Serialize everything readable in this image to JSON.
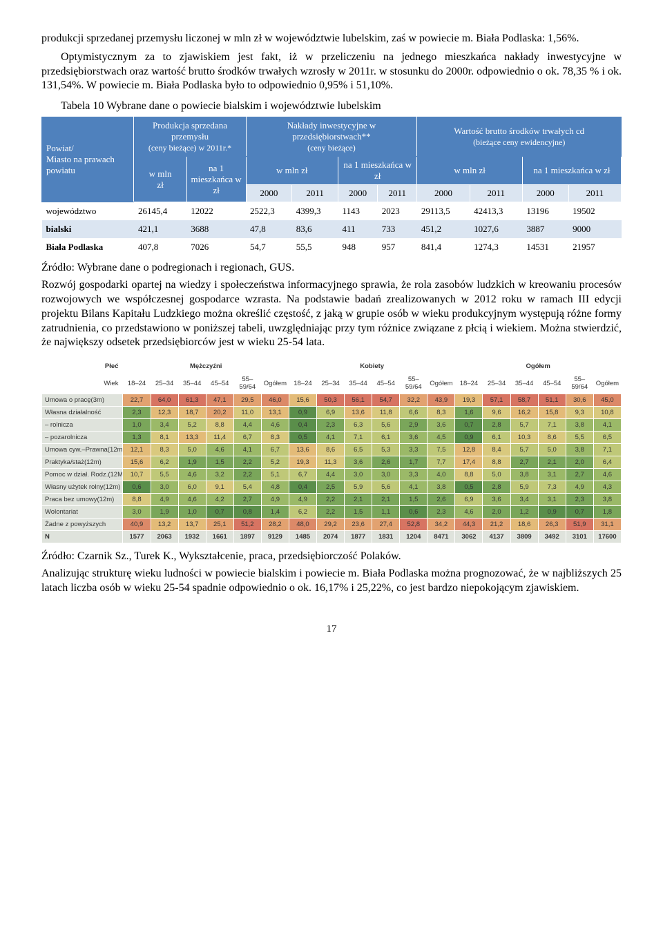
{
  "intro": {
    "p1": "produkcji sprzedanej przemysłu liczonej w mln zł w województwie lubelskim, zaś w powiecie m. Biała Podlaska: 1,56%.",
    "p2": "Optymistycznym za to zjawiskiem jest fakt, iż w przeliczeniu na jednego mieszkańca nakłady inwestycyjne w przedsiębiorstwach oraz wartość brutto środków trwałych wzrosły w 2011r. w stosunku do 2000r. odpowiednio o ok. 78,35 % i ok. 131,54%. W powiecie m. Biała Podlaska było to odpowiednio 0,95% i 51,10%.",
    "caption": "Tabela 10 Wybrane dane o powiecie bialskim i województwie lubelskim"
  },
  "t1": {
    "head": {
      "c0": "Powiat/\nMiasto na prawach powiatu",
      "g1_top": "Produkcja sprzedana przemysłu",
      "g1_sub": "(ceny bieżące) w 2011r.*",
      "g2_top": "Nakłady inwestycyjne w przedsiębiorstwach**",
      "g2_sub": "(ceny bieżące)",
      "g3_top": "Wartość brutto środków trwałych cd",
      "g3_sub": "(bieżące ceny ewidencyjne)",
      "wmln": "w mln zł",
      "na1a": "na 1 mieszkańca w zł",
      "na1b": "na 1 mieszkańca w zł",
      "na1c": "na 1 mieszkańca w zł",
      "y2000": "2000",
      "y2011": "2011"
    },
    "rows": [
      {
        "label": "województwo",
        "v": [
          "26145,4",
          "12022",
          "2522,3",
          "4399,3",
          "1143",
          "2023",
          "29113,5",
          "42413,3",
          "13196",
          "19502"
        ]
      },
      {
        "label": "bialski",
        "v": [
          "421,1",
          "3688",
          "47,8",
          "83,6",
          "411",
          "733",
          "451,2",
          "1027,6",
          "3887",
          "9000"
        ]
      },
      {
        "label": "Biała Podlaska",
        "v": [
          "407,8",
          "7026",
          "54,7",
          "55,5",
          "948",
          "957",
          "841,4",
          "1274,3",
          "14531",
          "21957"
        ]
      }
    ]
  },
  "mid": {
    "source1": "Źródło: Wybrane dane o podregionach i regionach, GUS.",
    "p3": "Rozwój gospodarki opartej na wiedzy i społeczeństwa informacyjnego sprawia, że rola zasobów ludzkich w kreowaniu procesów rozwojowych we współczesnej gospodarce wzrasta. Na podstawie badań zrealizowanych w 2012 roku w ramach III edycji projektu Bilans Kapitału Ludzkiego można określić częstość, z jaką w grupie osób w wieku produkcyjnym występują różne formy zatrudnienia, co przedstawiono w poniższej tabeli, uwzględniając przy tym różnice związane z płcią i wiekiem. Można stwierdzić, że największy odsetek przedsiębiorców jest w wieku 25-54 lata."
  },
  "t2": {
    "plec_label": "Płeć",
    "wiek_label": "Wiek",
    "groups": [
      "Mężczyźni",
      "Kobiety",
      "Ogółem"
    ],
    "ages": [
      "18–24",
      "25–34",
      "35–44",
      "45–54",
      "55–59/64",
      "Ogółem"
    ],
    "rowlabels": [
      "Umowa o pracę(3m)",
      "Własna działalność",
      "– rolnicza",
      "– pozarolnicza",
      "Umowa cyw.–Prawna(12m)",
      "Praktyka/staż(12m)",
      "Pomoc w dział. Rodz.(12M)",
      "Własny użytek rolny(12m)",
      "Praca bez umowy(12m)",
      "Wolontariat",
      "Żadne z powyższych",
      "N"
    ],
    "data": [
      [
        22.7,
        64.0,
        61.3,
        47.1,
        29.5,
        46.0,
        15.6,
        50.3,
        56.1,
        54.7,
        32.2,
        43.9,
        19.3,
        57.1,
        58.7,
        51.1,
        30.6,
        45.0
      ],
      [
        2.3,
        12.3,
        18.7,
        20.2,
        11.0,
        13.1,
        0.9,
        6.9,
        13.6,
        11.8,
        6.6,
        8.3,
        1.6,
        9.6,
        16.2,
        15.8,
        9.3,
        10.8
      ],
      [
        1.0,
        3.4,
        5.2,
        8.8,
        4.4,
        4.6,
        0.4,
        2.3,
        6.3,
        5.6,
        2.9,
        3.6,
        0.7,
        2.8,
        5.7,
        7.1,
        3.8,
        4.1
      ],
      [
        1.3,
        8.1,
        13.3,
        11.4,
        6.7,
        8.3,
        0.5,
        4.1,
        7.1,
        6.1,
        3.6,
        4.5,
        0.9,
        6.1,
        10.3,
        8.6,
        5.5,
        6.5
      ],
      [
        12.1,
        8.3,
        5.0,
        4.6,
        4.1,
        6.7,
        13.6,
        8.6,
        6.5,
        5.3,
        3.3,
        7.5,
        12.8,
        8.4,
        5.7,
        5.0,
        3.8,
        7.1
      ],
      [
        15.6,
        6.2,
        1.9,
        1.5,
        2.2,
        5.2,
        19.3,
        11.3,
        3.6,
        2.6,
        1.7,
        7.7,
        17.4,
        8.8,
        2.7,
        2.1,
        2.0,
        6.4
      ],
      [
        10.7,
        5.5,
        4.6,
        3.2,
        2.2,
        5.1,
        6.7,
        4.4,
        3.0,
        3.0,
        3.3,
        4.0,
        8.8,
        5.0,
        3.8,
        3.1,
        2.7,
        4.6
      ],
      [
        0.6,
        3.0,
        6.0,
        9.1,
        5.4,
        4.8,
        0.4,
        2.5,
        5.9,
        5.6,
        4.1,
        3.8,
        0.5,
        2.8,
        5.9,
        7.3,
        4.9,
        4.3
      ],
      [
        8.8,
        4.9,
        4.6,
        4.2,
        2.7,
        4.9,
        4.9,
        2.2,
        2.1,
        2.1,
        1.5,
        2.6,
        6.9,
        3.6,
        3.4,
        3.1,
        2.3,
        3.8
      ],
      [
        3.0,
        1.9,
        1.0,
        0.7,
        0.8,
        1.4,
        6.2,
        2.2,
        1.5,
        1.1,
        0.6,
        2.3,
        4.6,
        2.0,
        1.2,
        0.9,
        0.7,
        1.8
      ],
      [
        40.9,
        13.2,
        13.7,
        25.1,
        51.2,
        28.2,
        48.0,
        29.2,
        23.6,
        27.4,
        52.8,
        34.2,
        44.3,
        21.2,
        18.6,
        26.3,
        51.9,
        31.1
      ],
      [
        1577,
        2063,
        1932,
        1661,
        1897,
        9129,
        1485,
        2074,
        1877,
        1831,
        1204,
        8471,
        3062,
        4137,
        3809,
        3492,
        3101,
        17600
      ]
    ],
    "heat": {
      "breaks": [
        1,
        3,
        5,
        8,
        12,
        20,
        35,
        50
      ],
      "colors": [
        "#5a8e4a",
        "#7aa65a",
        "#9bb968",
        "#bfc878",
        "#d9c97e",
        "#e3bb78",
        "#e2a270",
        "#dc8968",
        "#d77462"
      ]
    },
    "n_bg": "#dfe3dc"
  },
  "end": {
    "source2": "Źródło: Czarnik Sz., Turek K., Wykształcenie, praca, przedsiębiorczość Polaków.",
    "p4": "Analizując strukturę wieku ludności w powiecie bialskim i powiecie m. Biała Podlaska można prognozować, że w najbliższych 25 latach liczba osób w wieku 25-54 spadnie odpowiednio o ok. 16,17% i 25,22%, co jest bardzo niepokojącym zjawiskiem.",
    "page": "17"
  }
}
